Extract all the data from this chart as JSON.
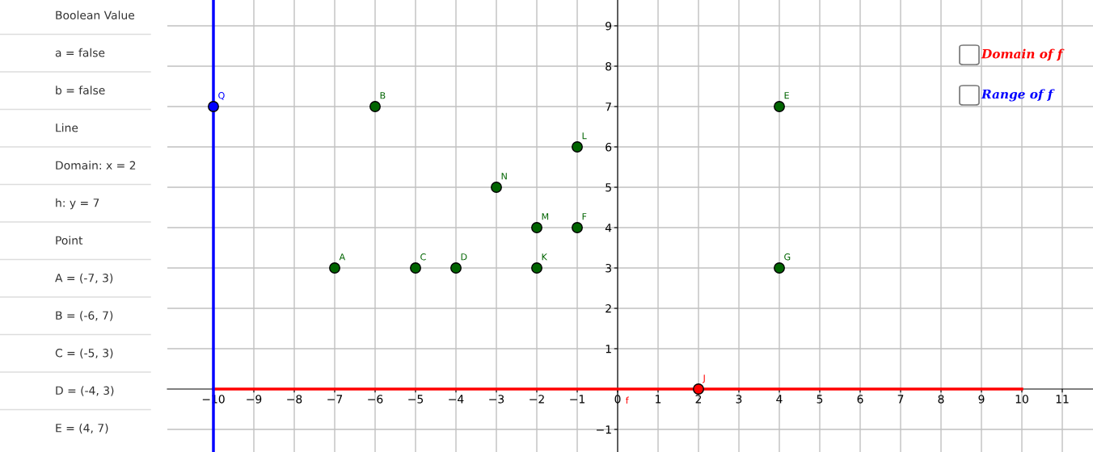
{
  "chart_data": [
    {
      "type": "other",
      "annotations": [
        "Boolean Value",
        "a = false",
        "b = false",
        "Line",
        "Domain: x = 2",
        "h: y = 7",
        "Point",
        "A = (-7, 3)",
        "B = (-6, 7)",
        "C = (-5, 3)",
        "D = (-4, 3)",
        "E = (4, 7)"
      ]
    },
    {
      "type": "scatter",
      "xlim": [
        -11.14,
        11.76
      ],
      "ylim": [
        -1.56,
        9.64
      ],
      "xticks": [
        -10,
        -9,
        -8,
        -7,
        -6,
        -5,
        -4,
        -3,
        -2,
        -1,
        0,
        1,
        2,
        3,
        4,
        5,
        6,
        7,
        8,
        9,
        10,
        11
      ],
      "yticks": [
        -1,
        1,
        2,
        3,
        4,
        5,
        6,
        7,
        8,
        9
      ],
      "grid": true,
      "marker": "circle",
      "series": [
        {
          "type": "line",
          "color": "#ff0000",
          "marker": "none",
          "x": [
            -10,
            10
          ],
          "values": [
            0,
            0
          ]
        },
        {
          "color": "#006400",
          "x": [
            -7,
            -6,
            -5,
            -4,
            4,
            -1,
            4,
            -2,
            -1,
            -2,
            -3
          ],
          "values": [
            3,
            7,
            3,
            3,
            7,
            4,
            3,
            3,
            6,
            4,
            5
          ]
        },
        {
          "color": "#0000ff",
          "x": [
            -10
          ],
          "values": [
            7
          ]
        },
        {
          "color": "#ff0000",
          "x": [
            2
          ],
          "values": [
            0
          ]
        }
      ],
      "ref_lines": [
        {
          "axis": "x",
          "value": -10,
          "color": "#0000ff"
        }
      ],
      "annotations": [
        {
          "text": "A",
          "x": -7,
          "y": 3
        },
        {
          "text": "B",
          "x": -6,
          "y": 7
        },
        {
          "text": "C",
          "x": -5,
          "y": 3
        },
        {
          "text": "D",
          "x": -4,
          "y": 3
        },
        {
          "text": "E",
          "x": 4,
          "y": 7
        },
        {
          "text": "F",
          "x": -1,
          "y": 4
        },
        {
          "text": "G",
          "x": 4,
          "y": 3
        },
        {
          "text": "K",
          "x": -2,
          "y": 3
        },
        {
          "text": "L",
          "x": -1,
          "y": 6
        },
        {
          "text": "M",
          "x": -2,
          "y": 4
        },
        {
          "text": "N",
          "x": -3,
          "y": 5
        },
        {
          "text": "Q",
          "x": -10,
          "y": 7
        },
        {
          "text": "J",
          "x": 2,
          "y": 0
        },
        {
          "text": "f",
          "x": 0,
          "y": 0
        },
        "Domain of f",
        "Range of f"
      ]
    }
  ]
}
